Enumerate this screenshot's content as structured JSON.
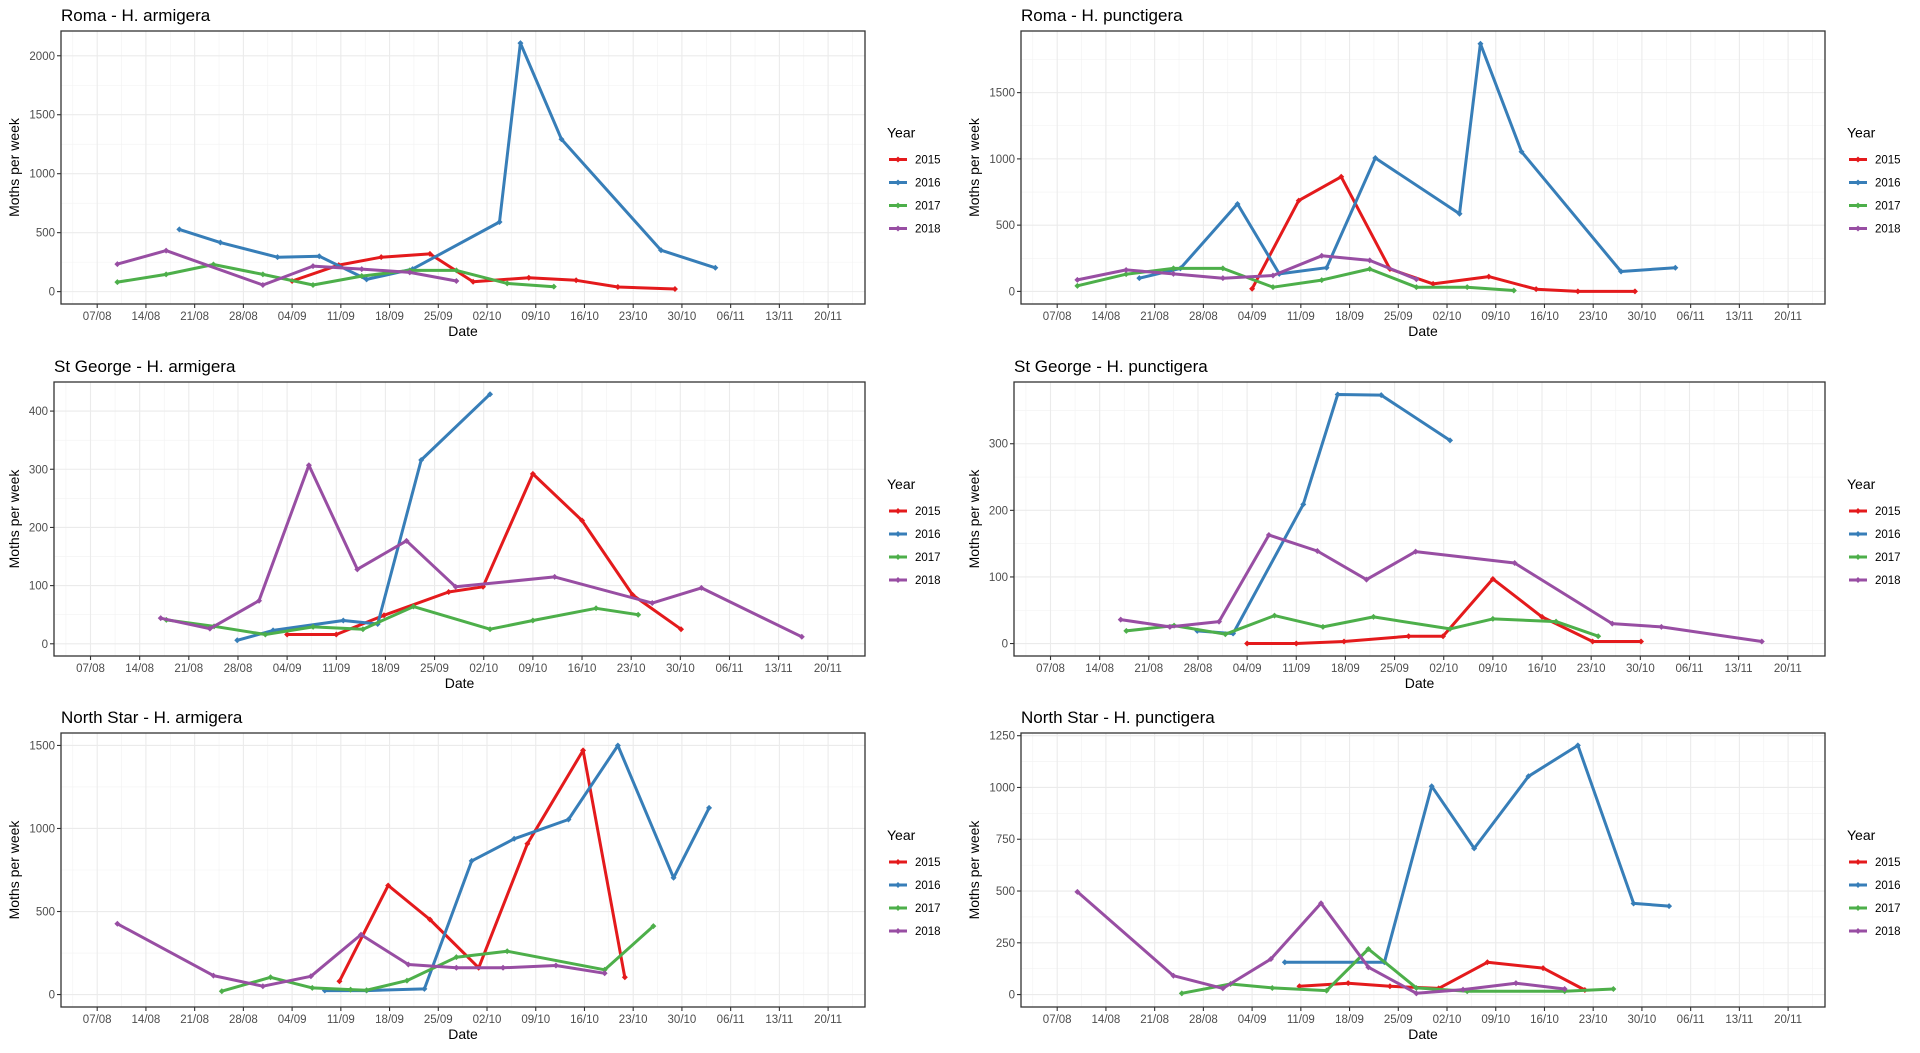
{
  "chart_data": [
    {
      "type": "line",
      "title": "Roma - H. armigera",
      "xlabel": "Date",
      "ylabel": "Moths per week",
      "x_unit": "days after 07/08",
      "x_ticks": [
        "07/08",
        "14/08",
        "21/08",
        "28/08",
        "04/09",
        "11/09",
        "18/09",
        "25/09",
        "02/10",
        "09/10",
        "16/10",
        "23/10",
        "30/10",
        "06/11",
        "13/11",
        "20/11"
      ],
      "y_ticks": [
        0,
        500,
        1000,
        1500,
        2000
      ],
      "ylim": [
        -105,
        2210
      ],
      "grid": true,
      "legend": {
        "title": "Year",
        "position": "right"
      },
      "series": [
        {
          "name": "2015",
          "color": "#E41A1C",
          "x": [
            28,
            34.7,
            40.8,
            47.8,
            54,
            62,
            68.8,
            74.8,
            83
          ],
          "y": [
            90,
            225,
            292,
            320,
            84,
            118,
            96,
            39,
            22
          ]
        },
        {
          "name": "2016",
          "color": "#377EB8",
          "x": [
            11.8,
            17.7,
            25.9,
            31.9,
            38.7,
            45.3,
            57.8,
            60.8,
            66.7,
            81,
            88.8
          ],
          "y": [
            528,
            416,
            292,
            300,
            104,
            191,
            590,
            2107,
            1292,
            351,
            202
          ]
        },
        {
          "name": "2017",
          "color": "#4DAF4A",
          "x": [
            2.9,
            9.9,
            16.7,
            23.8,
            31,
            38,
            44.9,
            51.6,
            58.9,
            65.6
          ],
          "y": [
            81,
            146,
            230,
            146,
            56,
            132,
            180,
            180,
            70,
            42
          ]
        },
        {
          "name": "2018",
          "color": "#984EA3",
          "x": [
            2.9,
            9.9,
            23.8,
            31,
            38,
            44.9,
            51.6
          ],
          "y": [
            233,
            348,
            56,
            216,
            191,
            163,
            90
          ]
        }
      ]
    },
    {
      "type": "line",
      "title": "Roma - H. punctigera",
      "xlabel": "Date",
      "ylabel": "Moths per week",
      "x_unit": "days after 07/08",
      "x_ticks": [
        "07/08",
        "14/08",
        "21/08",
        "28/08",
        "04/09",
        "11/09",
        "18/09",
        "25/09",
        "02/10",
        "09/10",
        "16/10",
        "23/10",
        "30/10",
        "06/11",
        "13/11",
        "20/11"
      ],
      "y_ticks": [
        0,
        500,
        1000,
        1500
      ],
      "ylim": [
        -95,
        1965
      ],
      "grid": true,
      "legend": {
        "title": "Year",
        "position": "right"
      },
      "series": [
        {
          "name": "2015",
          "color": "#E41A1C",
          "x": [
            28,
            34.7,
            40.8,
            47.8,
            54,
            62,
            68.8,
            74.8,
            83
          ],
          "y": [
            20,
            685,
            865,
            169,
            57,
            112,
            17,
            0,
            0
          ]
        },
        {
          "name": "2016",
          "color": "#377EB8",
          "x": [
            11.8,
            17.7,
            25.9,
            31.9,
            38.7,
            45.7,
            57.8,
            60.8,
            66.7,
            81,
            88.8
          ],
          "y": [
            100,
            174,
            660,
            132,
            179,
            1007,
            586,
            1869,
            1054,
            150,
            179
          ]
        },
        {
          "name": "2017",
          "color": "#4DAF4A",
          "x": [
            2.9,
            9.9,
            16.7,
            23.8,
            31,
            38,
            44.9,
            51.6,
            58.9,
            65.6
          ],
          "y": [
            42,
            130,
            174,
            174,
            32,
            85,
            169,
            32,
            32,
            7
          ]
        },
        {
          "name": "2018",
          "color": "#984EA3",
          "x": [
            2.9,
            9.9,
            16.7,
            23.8,
            31,
            38,
            44.9,
            51.6
          ],
          "y": [
            87,
            162,
            132,
            100,
            120,
            269,
            234,
            92
          ]
        }
      ]
    },
    {
      "type": "line",
      "title": "St George - H. armigera",
      "xlabel": "Date",
      "ylabel": "Moths per week",
      "x_unit": "days after 07/08",
      "x_ticks": [
        "07/08",
        "14/08",
        "21/08",
        "28/08",
        "04/09",
        "11/09",
        "18/09",
        "25/09",
        "02/10",
        "09/10",
        "16/10",
        "23/10",
        "30/10",
        "06/11",
        "13/11",
        "20/11"
      ],
      "y_ticks": [
        0,
        100,
        200,
        300,
        400
      ],
      "ylim": [
        -21,
        450
      ],
      "grid": true,
      "legend": {
        "title": "Year",
        "position": "right"
      },
      "series": [
        {
          "name": "2015",
          "color": "#E41A1C",
          "x": [
            28,
            35,
            41.8,
            51,
            55.9,
            63,
            70,
            77.2,
            84.1
          ],
          "y": [
            16,
            16,
            49,
            89,
            98,
            292,
            212,
            84,
            25
          ]
        },
        {
          "name": "2016",
          "color": "#377EB8",
          "x": [
            20.9,
            26,
            36,
            40.9,
            47.1,
            56.9
          ],
          "y": [
            6,
            23,
            40,
            34,
            316,
            429
          ]
        },
        {
          "name": "2017",
          "color": "#4DAF4A",
          "x": [
            10.8,
            17.6,
            24.9,
            31.7,
            38.8,
            46,
            56.9,
            63,
            72,
            78
          ],
          "y": [
            41,
            30,
            16,
            29,
            25,
            64,
            25,
            40,
            61,
            50
          ]
        },
        {
          "name": "2018",
          "color": "#984EA3",
          "x": [
            10,
            17,
            24,
            31.1,
            38,
            45,
            52,
            66.1,
            80,
            87,
            101.3
          ],
          "y": [
            44,
            26,
            74,
            307,
            128,
            177,
            98,
            115,
            70,
            96,
            12
          ]
        }
      ]
    },
    {
      "type": "line",
      "title": "St George - H. punctigera",
      "xlabel": "Date",
      "ylabel": "Moths per week",
      "x_unit": "days after 07/08",
      "x_ticks": [
        "07/08",
        "14/08",
        "21/08",
        "28/08",
        "04/09",
        "11/09",
        "18/09",
        "25/09",
        "02/10",
        "09/10",
        "16/10",
        "23/10",
        "30/10",
        "06/11",
        "13/11",
        "20/11"
      ],
      "y_ticks": [
        0,
        100,
        200,
        300
      ],
      "ylim": [
        -18.7,
        392.7
      ],
      "grid": true,
      "legend": {
        "title": "Year",
        "position": "right"
      },
      "series": [
        {
          "name": "2015",
          "color": "#E41A1C",
          "x": [
            28,
            35,
            41.8,
            51,
            55.9,
            63,
            70,
            77.2,
            84.1
          ],
          "y": [
            0,
            0,
            3,
            11,
            11,
            97,
            40,
            3,
            3
          ]
        },
        {
          "name": "2016",
          "color": "#377EB8",
          "x": [
            20.9,
            26,
            36,
            40.9,
            47.1,
            56.9
          ],
          "y": [
            19,
            15,
            209,
            374,
            373,
            305
          ]
        },
        {
          "name": "2017",
          "color": "#4DAF4A",
          "x": [
            10.8,
            17.6,
            24.9,
            31.9,
            38.8,
            46,
            56.9,
            63,
            72,
            78
          ],
          "y": [
            19,
            27,
            14,
            42,
            25,
            40,
            22,
            37,
            33,
            11
          ]
        },
        {
          "name": "2018",
          "color": "#984EA3",
          "x": [
            10,
            17,
            24,
            31.1,
            38,
            45,
            52,
            66.1,
            80,
            87,
            101.3
          ],
          "y": [
            36,
            25,
            33,
            163,
            139,
            96,
            138,
            121,
            30,
            25,
            3
          ]
        }
      ]
    },
    {
      "type": "line",
      "title": "North Star - H. armigera",
      "xlabel": "Date",
      "ylabel": "Moths per week",
      "x_unit": "days after 07/08",
      "x_ticks": [
        "07/08",
        "14/08",
        "21/08",
        "28/08",
        "04/09",
        "11/09",
        "18/09",
        "25/09",
        "02/10",
        "09/10",
        "16/10",
        "23/10",
        "30/10",
        "06/11",
        "13/11",
        "20/11"
      ],
      "y_ticks": [
        0,
        500,
        1000,
        1500
      ],
      "ylim": [
        -75,
        1575
      ],
      "grid": true,
      "legend": {
        "title": "Year",
        "position": "right"
      },
      "series": [
        {
          "name": "2015",
          "color": "#E41A1C",
          "x": [
            34.8,
            41.8,
            47.8,
            54.8,
            61.8,
            69.8,
            75.8
          ],
          "y": [
            80,
            657,
            452,
            161,
            908,
            1470,
            104
          ]
        },
        {
          "name": "2016",
          "color": "#377EB8",
          "x": [
            32.7,
            38.7,
            47,
            53.8,
            59.9,
            67.7,
            74.8,
            82.8,
            87.9
          ],
          "y": [
            24,
            24,
            34,
            805,
            938,
            1054,
            1500,
            703,
            1124
          ]
        },
        {
          "name": "2017",
          "color": "#4DAF4A",
          "x": [
            17.9,
            24.9,
            30.9,
            36.4,
            38.7,
            44.5,
            51.6,
            58.9,
            72.9,
            79.9
          ],
          "y": [
            20,
            104,
            40,
            30,
            26,
            84,
            225,
            261,
            149,
            412
          ]
        },
        {
          "name": "2018",
          "color": "#984EA3",
          "x": [
            2.9,
            16.7,
            23.8,
            30.7,
            37.9,
            44.7,
            51.6,
            58.3,
            65.9,
            72.9
          ],
          "y": [
            426,
            114,
            50,
            110,
            361,
            181,
            161,
            161,
            175,
            128
          ]
        }
      ]
    },
    {
      "type": "line",
      "title": "North Star - H. punctigera",
      "xlabel": "Date",
      "ylabel": "Moths per week",
      "x_unit": "days after 07/08",
      "x_ticks": [
        "07/08",
        "14/08",
        "21/08",
        "28/08",
        "04/09",
        "11/09",
        "18/09",
        "25/09",
        "02/10",
        "09/10",
        "16/10",
        "23/10",
        "30/10",
        "06/11",
        "13/11",
        "20/11"
      ],
      "y_ticks": [
        0,
        250,
        500,
        750,
        1000,
        1250
      ],
      "ylim": [
        -60,
        1263
      ],
      "grid": true,
      "legend": {
        "title": "Year",
        "position": "right"
      },
      "series": [
        {
          "name": "2015",
          "color": "#E41A1C",
          "x": [
            34.8,
            41.8,
            47.8,
            54.8,
            61.8,
            69.8,
            75.8
          ],
          "y": [
            40,
            55,
            40,
            30,
            156,
            128,
            22
          ]
        },
        {
          "name": "2016",
          "color": "#377EB8",
          "x": [
            32.7,
            47,
            53.8,
            59.9,
            67.7,
            74.8,
            82.8,
            87.9
          ],
          "y": [
            156,
            156,
            1006,
            706,
            1054,
            1203,
            440,
            427
          ]
        },
        {
          "name": "2017",
          "color": "#4DAF4A",
          "x": [
            17.9,
            24.9,
            30.9,
            38.7,
            44.7,
            51.6,
            58.9,
            72.9,
            79.9
          ],
          "y": [
            6,
            51,
            32,
            19,
            220,
            32,
            16,
            16,
            27
          ]
        },
        {
          "name": "2018",
          "color": "#984EA3",
          "x": [
            2.9,
            16.7,
            23.8,
            30.7,
            37.9,
            44.7,
            51.6,
            58.3,
            65.9,
            72.9
          ],
          "y": [
            496,
            91,
            30,
            172,
            441,
            132,
            6,
            24,
            55,
            27
          ]
        }
      ]
    }
  ]
}
